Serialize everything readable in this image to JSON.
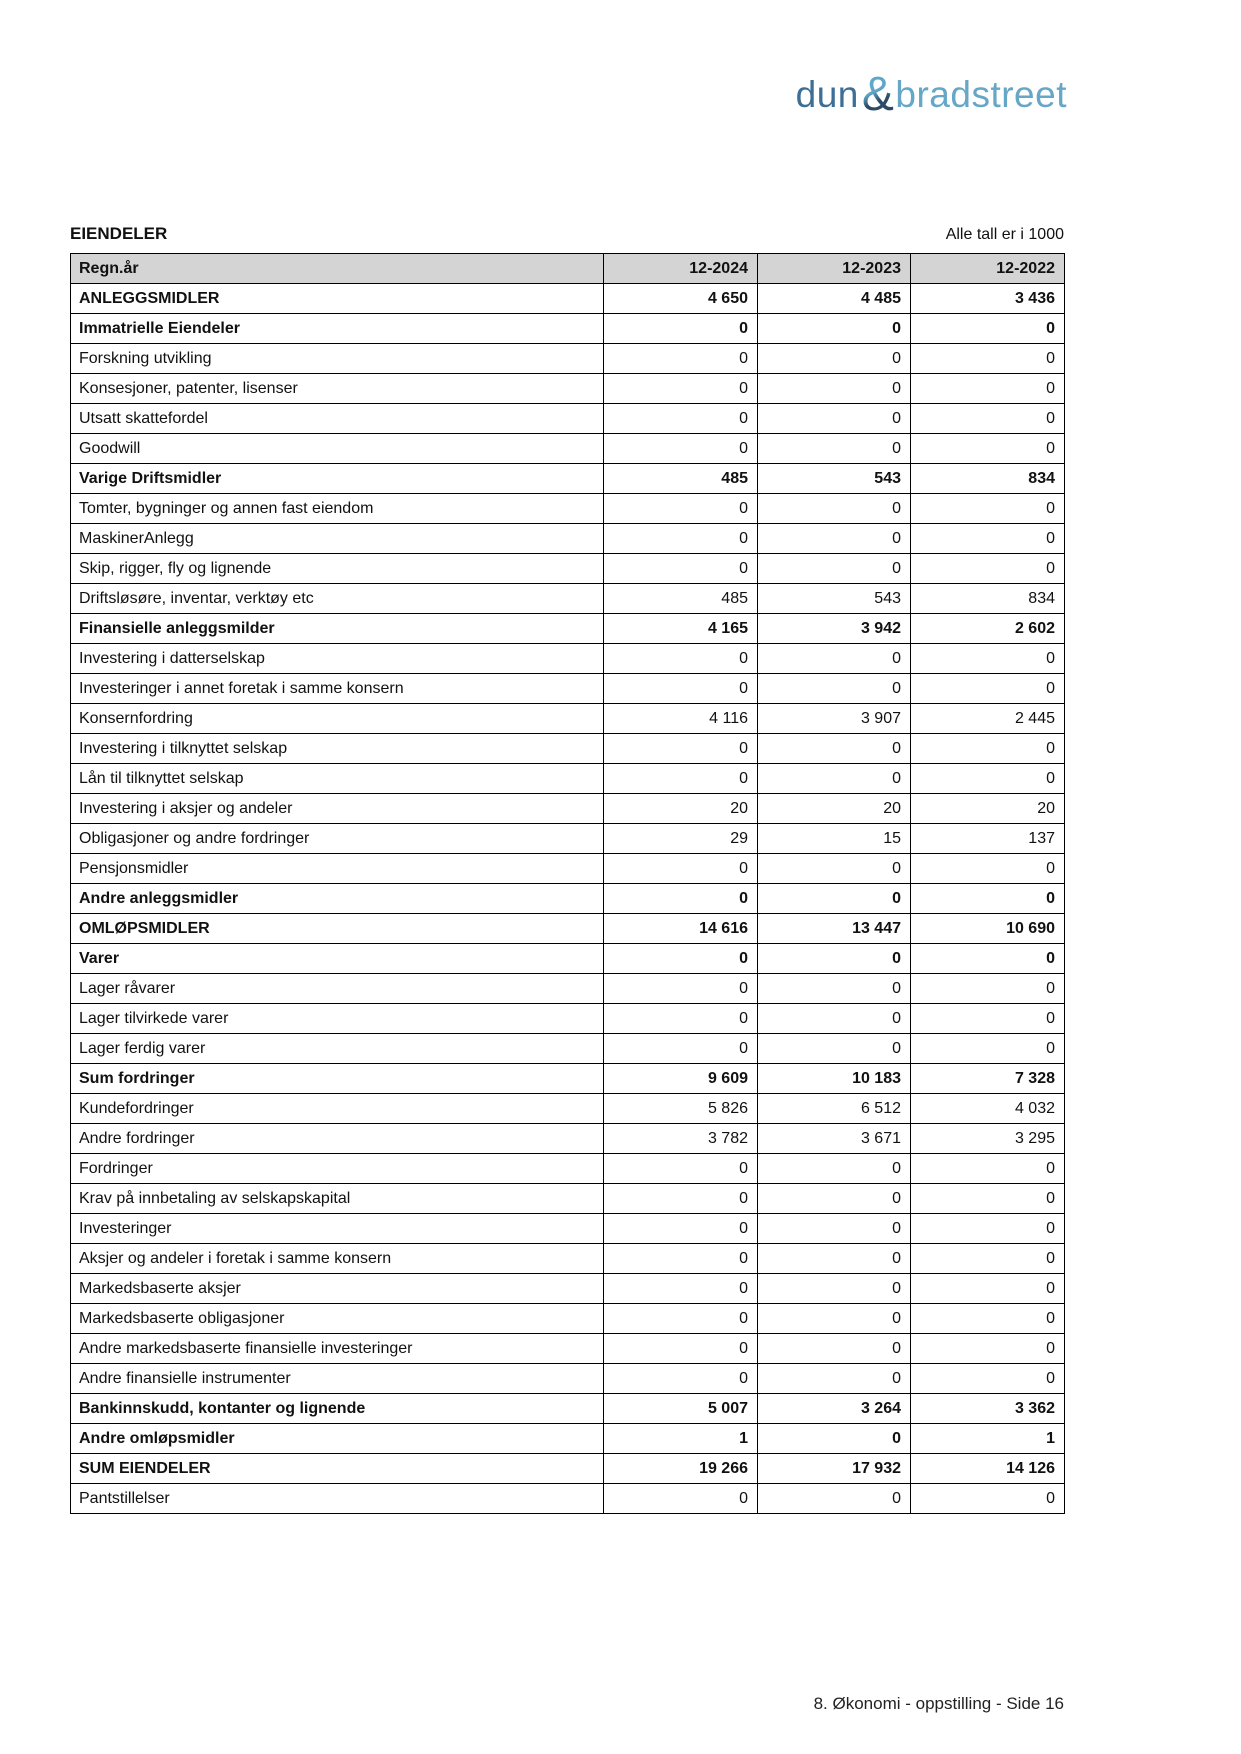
{
  "logo": {
    "dun": "dun",
    "ampersand": "&",
    "bradstreet": "bradstreet"
  },
  "header": {
    "title": "EIENDELER",
    "note": "Alle tall er i 1000"
  },
  "colors": {
    "logo_dun": "#3d6e96",
    "logo_bradstreet": "#66a6c6",
    "logo_amp_light": "#5fa6c8",
    "logo_amp_dark": "#2b4b68",
    "table_header_bg": "#d4d4d4",
    "border": "#000000"
  },
  "table": {
    "year_label": "Regn.år",
    "columns": [
      "12-2024",
      "12-2023",
      "12-2022"
    ],
    "rows": [
      {
        "label": "ANLEGGSMIDLER",
        "bold": true,
        "values": [
          "4 650",
          "4 485",
          "3 436"
        ]
      },
      {
        "label": "Immatrielle Eiendeler",
        "bold": true,
        "values": [
          "0",
          "0",
          "0"
        ]
      },
      {
        "label": "Forskning utvikling",
        "bold": false,
        "values": [
          "0",
          "0",
          "0"
        ]
      },
      {
        "label": "Konsesjoner, patenter, lisenser",
        "bold": false,
        "values": [
          "0",
          "0",
          "0"
        ]
      },
      {
        "label": "Utsatt skattefordel",
        "bold": false,
        "values": [
          "0",
          "0",
          "0"
        ]
      },
      {
        "label": "Goodwill",
        "bold": false,
        "values": [
          "0",
          "0",
          "0"
        ]
      },
      {
        "label": "Varige Driftsmidler",
        "bold": true,
        "values": [
          "485",
          "543",
          "834"
        ]
      },
      {
        "label": "Tomter, bygninger og annen fast eiendom",
        "bold": false,
        "values": [
          "0",
          "0",
          "0"
        ]
      },
      {
        "label": "MaskinerAnlegg",
        "bold": false,
        "values": [
          "0",
          "0",
          "0"
        ]
      },
      {
        "label": "Skip, rigger, fly og lignende",
        "bold": false,
        "values": [
          "0",
          "0",
          "0"
        ]
      },
      {
        "label": "Driftsløsøre, inventar, verktøy etc",
        "bold": false,
        "values": [
          "485",
          "543",
          "834"
        ]
      },
      {
        "label": "Finansielle anleggsmilder",
        "bold": true,
        "values": [
          "4 165",
          "3 942",
          "2 602"
        ]
      },
      {
        "label": "Investering i datterselskap",
        "bold": false,
        "values": [
          "0",
          "0",
          "0"
        ]
      },
      {
        "label": "Investeringer i annet foretak i samme konsern",
        "bold": false,
        "values": [
          "0",
          "0",
          "0"
        ]
      },
      {
        "label": "Konsernfordring",
        "bold": false,
        "values": [
          "4 116",
          "3 907",
          "2 445"
        ]
      },
      {
        "label": "Investering i tilknyttet selskap",
        "bold": false,
        "values": [
          "0",
          "0",
          "0"
        ]
      },
      {
        "label": "Lån til tilknyttet selskap",
        "bold": false,
        "values": [
          "0",
          "0",
          "0"
        ]
      },
      {
        "label": "Investering i aksjer og andeler",
        "bold": false,
        "values": [
          "20",
          "20",
          "20"
        ]
      },
      {
        "label": "Obligasjoner og andre fordringer",
        "bold": false,
        "values": [
          "29",
          "15",
          "137"
        ]
      },
      {
        "label": "Pensjonsmidler",
        "bold": false,
        "values": [
          "0",
          "0",
          "0"
        ]
      },
      {
        "label": "Andre anleggsmidler",
        "bold": true,
        "values": [
          "0",
          "0",
          "0"
        ]
      },
      {
        "label": "OMLØPSMIDLER",
        "bold": true,
        "values": [
          "14 616",
          "13 447",
          "10 690"
        ]
      },
      {
        "label": "Varer",
        "bold": true,
        "values": [
          "0",
          "0",
          "0"
        ]
      },
      {
        "label": "Lager råvarer",
        "bold": false,
        "values": [
          "0",
          "0",
          "0"
        ]
      },
      {
        "label": "Lager tilvirkede varer",
        "bold": false,
        "values": [
          "0",
          "0",
          "0"
        ]
      },
      {
        "label": "Lager ferdig varer",
        "bold": false,
        "values": [
          "0",
          "0",
          "0"
        ]
      },
      {
        "label": "Sum fordringer",
        "bold": true,
        "values": [
          "9 609",
          "10 183",
          "7 328"
        ]
      },
      {
        "label": "Kundefordringer",
        "bold": false,
        "values": [
          "5 826",
          "6 512",
          "4 032"
        ]
      },
      {
        "label": "Andre fordringer",
        "bold": false,
        "values": [
          "3 782",
          "3 671",
          "3 295"
        ]
      },
      {
        "label": "Fordringer",
        "bold": false,
        "values": [
          "0",
          "0",
          "0"
        ]
      },
      {
        "label": "Krav på innbetaling av selskapskapital",
        "bold": false,
        "values": [
          "0",
          "0",
          "0"
        ]
      },
      {
        "label": "Investeringer",
        "bold": false,
        "values": [
          "0",
          "0",
          "0"
        ]
      },
      {
        "label": "Aksjer og andeler i foretak i samme konsern",
        "bold": false,
        "values": [
          "0",
          "0",
          "0"
        ]
      },
      {
        "label": "Markedsbaserte aksjer",
        "bold": false,
        "values": [
          "0",
          "0",
          "0"
        ]
      },
      {
        "label": "Markedsbaserte obligasjoner",
        "bold": false,
        "values": [
          "0",
          "0",
          "0"
        ]
      },
      {
        "label": "Andre markedsbaserte finansielle investeringer",
        "bold": false,
        "values": [
          "0",
          "0",
          "0"
        ]
      },
      {
        "label": "Andre finansielle instrumenter",
        "bold": false,
        "values": [
          "0",
          "0",
          "0"
        ]
      },
      {
        "label": "Bankinnskudd, kontanter og lignende",
        "bold": true,
        "values": [
          "5 007",
          "3 264",
          "3 362"
        ]
      },
      {
        "label": "Andre omløpsmidler",
        "bold": true,
        "values": [
          "1",
          "0",
          "1"
        ]
      },
      {
        "label": "SUM EIENDELER",
        "bold": true,
        "values": [
          "19 266",
          "17 932",
          "14 126"
        ]
      },
      {
        "label": "Pantstillelser",
        "bold": false,
        "values": [
          "0",
          "0",
          "0"
        ]
      }
    ]
  },
  "footer": {
    "text": "8. Økonomi - oppstilling - Side 16"
  }
}
